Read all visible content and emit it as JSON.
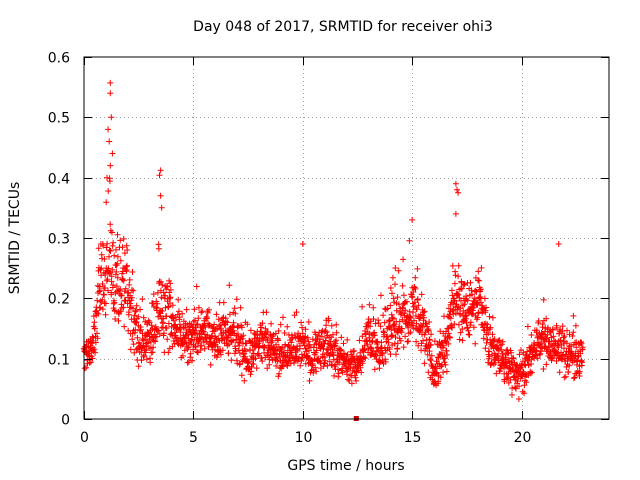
{
  "chart_data": {
    "type": "scatter",
    "title": "Day 048 of 2017, SRMTID for receiver ohi3",
    "xlabel": "GPS time / hours",
    "ylabel": "SRMTID / TECUs",
    "xlim": [
      0,
      24
    ],
    "ylim": [
      0,
      0.6
    ],
    "x_ticks": [
      0,
      5,
      10,
      15,
      20
    ],
    "x_tick_labels": [
      "0",
      "5",
      "10",
      "15",
      "20"
    ],
    "y_ticks": [
      0,
      0.1,
      0.2,
      0.3,
      0.4,
      0.5,
      0.6
    ],
    "y_tick_labels": [
      "0",
      "0.1",
      "0.2",
      "0.3",
      "0.4",
      "0.5",
      "0.6"
    ],
    "grid": true,
    "marker": "+",
    "series": [
      {
        "name": "SRMTID",
        "color": "#ff0000",
        "trend": {
          "description": "approximate local envelope of the ~2000 plotted points (center, lower, upper in TECU) vs hour",
          "x": [
            0.0,
            0.4,
            0.7,
            1.0,
            1.2,
            1.5,
            1.8,
            2.1,
            2.5,
            3.0,
            3.4,
            3.7,
            4.0,
            4.5,
            5.0,
            5.5,
            6.0,
            6.5,
            7.0,
            7.5,
            8.0,
            8.5,
            9.0,
            9.5,
            10.0,
            10.5,
            11.0,
            11.5,
            12.0,
            12.5,
            13.0,
            13.5,
            14.0,
            14.5,
            15.0,
            15.5,
            16.0,
            16.5,
            17.0,
            17.5,
            18.0,
            18.5,
            19.0,
            19.5,
            20.0,
            20.5,
            21.0,
            21.5,
            22.0,
            22.5,
            22.8
          ],
          "center": [
            0.11,
            0.12,
            0.2,
            0.24,
            0.25,
            0.23,
            0.22,
            0.2,
            0.13,
            0.13,
            0.17,
            0.19,
            0.16,
            0.13,
            0.14,
            0.15,
            0.13,
            0.14,
            0.13,
            0.1,
            0.13,
            0.12,
            0.1,
            0.11,
            0.12,
            0.1,
            0.12,
            0.11,
            0.09,
            0.09,
            0.14,
            0.11,
            0.15,
            0.16,
            0.18,
            0.15,
            0.08,
            0.11,
            0.2,
            0.17,
            0.2,
            0.13,
            0.1,
            0.08,
            0.07,
            0.11,
            0.13,
            0.12,
            0.11,
            0.1,
            0.1
          ],
          "lower": [
            0.05,
            0.07,
            0.12,
            0.14,
            0.15,
            0.13,
            0.12,
            0.1,
            0.08,
            0.08,
            0.1,
            0.1,
            0.1,
            0.08,
            0.08,
            0.09,
            0.08,
            0.08,
            0.08,
            0.05,
            0.07,
            0.07,
            0.06,
            0.06,
            0.07,
            0.05,
            0.07,
            0.06,
            0.05,
            0.05,
            0.08,
            0.06,
            0.09,
            0.09,
            0.1,
            0.08,
            0.03,
            0.05,
            0.12,
            0.1,
            0.12,
            0.07,
            0.05,
            0.03,
            0.02,
            0.06,
            0.07,
            0.07,
            0.05,
            0.05,
            0.05
          ],
          "upper": [
            0.15,
            0.17,
            0.3,
            0.35,
            0.45,
            0.33,
            0.32,
            0.3,
            0.2,
            0.19,
            0.26,
            0.3,
            0.22,
            0.18,
            0.2,
            0.21,
            0.18,
            0.2,
            0.2,
            0.15,
            0.2,
            0.18,
            0.15,
            0.16,
            0.2,
            0.16,
            0.18,
            0.16,
            0.14,
            0.14,
            0.22,
            0.18,
            0.24,
            0.25,
            0.28,
            0.22,
            0.14,
            0.18,
            0.3,
            0.25,
            0.28,
            0.2,
            0.15,
            0.12,
            0.12,
            0.16,
            0.19,
            0.18,
            0.17,
            0.15,
            0.15
          ]
        },
        "peaks": [
          {
            "x": 1.2,
            "y": 0.557
          },
          {
            "x": 1.2,
            "y": 0.54
          },
          {
            "x": 1.25,
            "y": 0.5
          },
          {
            "x": 1.1,
            "y": 0.48
          },
          {
            "x": 1.15,
            "y": 0.46
          },
          {
            "x": 1.3,
            "y": 0.44
          },
          {
            "x": 1.2,
            "y": 0.42
          },
          {
            "x": 1.05,
            "y": 0.4
          },
          {
            "x": 3.5,
            "y": 0.412
          },
          {
            "x": 3.45,
            "y": 0.404
          },
          {
            "x": 3.5,
            "y": 0.37
          },
          {
            "x": 3.55,
            "y": 0.35
          },
          {
            "x": 15.0,
            "y": 0.33
          },
          {
            "x": 17.0,
            "y": 0.39
          },
          {
            "x": 17.05,
            "y": 0.38
          },
          {
            "x": 17.1,
            "y": 0.375
          },
          {
            "x": 17.0,
            "y": 0.34
          },
          {
            "x": 10.0,
            "y": 0.29
          },
          {
            "x": 21.7,
            "y": 0.29
          }
        ]
      }
    ],
    "annotations": [
      {
        "x": 12.45,
        "y": 0.0,
        "marker": "square",
        "color": "#cc0000"
      }
    ]
  }
}
